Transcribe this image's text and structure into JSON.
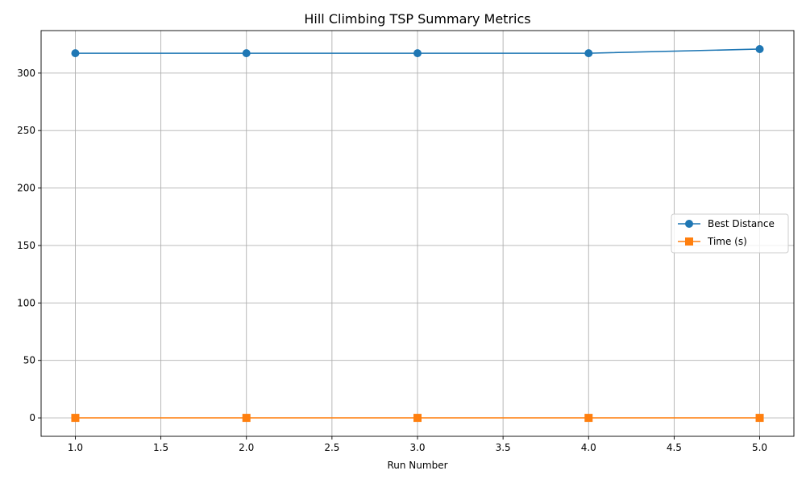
{
  "chart_data": {
    "type": "line",
    "title": "Hill Climbing TSP Summary Metrics",
    "xlabel": "Run Number",
    "ylabel": "",
    "x": [
      1,
      2,
      3,
      4,
      5
    ],
    "series": [
      {
        "name": "Best Distance",
        "values": [
          317.3,
          317.3,
          317.3,
          317.3,
          320.9
        ],
        "color": "#1f77b4",
        "marker": "circle"
      },
      {
        "name": "Time (s)",
        "values": [
          0.0,
          0.0,
          0.0,
          0.0,
          0.0
        ],
        "color": "#ff7f0e",
        "marker": "square"
      }
    ],
    "xlim": [
      0.8,
      5.2
    ],
    "ylim": [
      -16.05,
      337.0
    ],
    "xticks": [
      1.0,
      1.5,
      2.0,
      2.5,
      3.0,
      3.5,
      4.0,
      4.5,
      5.0
    ],
    "xtick_labels": [
      "1.0",
      "1.5",
      "2.0",
      "2.5",
      "3.0",
      "3.5",
      "4.0",
      "4.5",
      "5.0"
    ],
    "yticks": [
      0,
      50,
      100,
      150,
      200,
      250,
      300
    ],
    "ytick_labels": [
      "0",
      "50",
      "100",
      "150",
      "200",
      "250",
      "300"
    ],
    "grid": true,
    "legend_position": "center-right"
  }
}
